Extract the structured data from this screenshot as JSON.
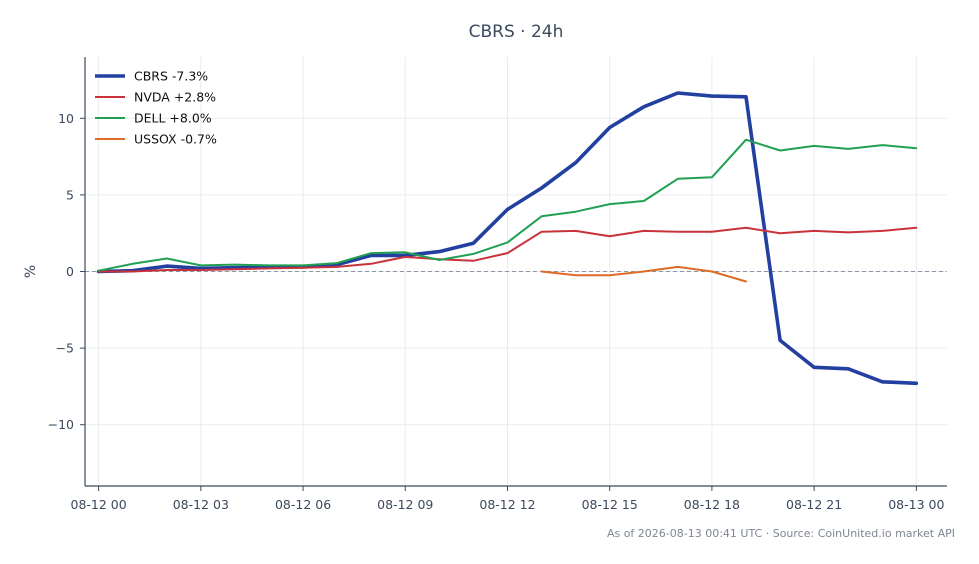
{
  "chart_data": {
    "type": "line",
    "title": "CBRS · 24h",
    "ylabel": "%",
    "xlabel": "",
    "ylim": [
      -14,
      14
    ],
    "xlim": [
      -0.4,
      24.9
    ],
    "yticks": [
      -10,
      -5,
      0,
      5,
      10
    ],
    "ytick_labels": [
      "−10",
      "−5",
      "0",
      "5",
      "10"
    ],
    "xticks": [
      0,
      3,
      6,
      9,
      12,
      15,
      18,
      21,
      24
    ],
    "xtick_labels": [
      "08-12 00",
      "08-12 03",
      "08-12 06",
      "08-12 09",
      "08-12 12",
      "08-12 15",
      "08-12 18",
      "08-12 21",
      "08-13 00"
    ],
    "grid": true,
    "baseline": 0,
    "legend_position": "top-left",
    "series": [
      {
        "name": "CBRS -7.3%",
        "color": "#2340a0",
        "width": 3.6,
        "x": [
          0,
          1,
          2,
          3,
          4,
          5,
          6,
          7,
          8,
          9,
          10,
          11,
          12,
          13,
          14,
          15,
          16,
          17,
          18,
          19,
          20,
          21,
          22,
          23,
          24
        ],
        "values": [
          0.0,
          0.05,
          0.35,
          0.2,
          0.25,
          0.3,
          0.3,
          0.45,
          1.05,
          1.05,
          1.3,
          1.85,
          4.05,
          5.45,
          7.1,
          9.4,
          10.75,
          11.65,
          11.45,
          11.4,
          -4.5,
          -6.25,
          -6.35,
          -7.2,
          -7.3
        ]
      },
      {
        "name": "NVDA +2.8%",
        "color": "#c8323a",
        "width": 2.0,
        "x": [
          0,
          1,
          2,
          3,
          4,
          5,
          6,
          7,
          8,
          9,
          10,
          11,
          12,
          13,
          14,
          15,
          16,
          17,
          18,
          19,
          20,
          21,
          22,
          23,
          24
        ],
        "values": [
          0.0,
          0.0,
          0.1,
          0.1,
          0.15,
          0.2,
          0.25,
          0.3,
          0.5,
          0.95,
          0.8,
          0.7,
          1.2,
          2.6,
          2.65,
          2.3,
          2.65,
          2.6,
          2.6,
          2.85,
          2.5,
          2.65,
          2.55,
          2.65,
          2.85
        ]
      },
      {
        "name": "DELL +8.0%",
        "color": "#22a052",
        "width": 2.0,
        "x": [
          0,
          1,
          2,
          3,
          4,
          5,
          6,
          7,
          8,
          9,
          10,
          11,
          12,
          13,
          14,
          15,
          16,
          17,
          18,
          19,
          20,
          21,
          22,
          23,
          24
        ],
        "values": [
          0.05,
          0.5,
          0.85,
          0.4,
          0.45,
          0.4,
          0.4,
          0.55,
          1.2,
          1.25,
          0.75,
          1.15,
          1.9,
          3.6,
          3.9,
          4.4,
          4.6,
          6.05,
          6.15,
          8.6,
          7.9,
          8.2,
          8.0,
          8.25,
          8.05
        ]
      },
      {
        "name": "USSOX -0.7%",
        "color": "#e06b25",
        "width": 2.0,
        "x": [
          13,
          14,
          15,
          16,
          17,
          18,
          19
        ],
        "values": [
          0.0,
          -0.25,
          -0.25,
          0.0,
          0.3,
          0.0,
          -0.65
        ]
      }
    ]
  },
  "footer": "As of 2026-08-13 00:41 UTC · Source: CoinUnited.io market API"
}
